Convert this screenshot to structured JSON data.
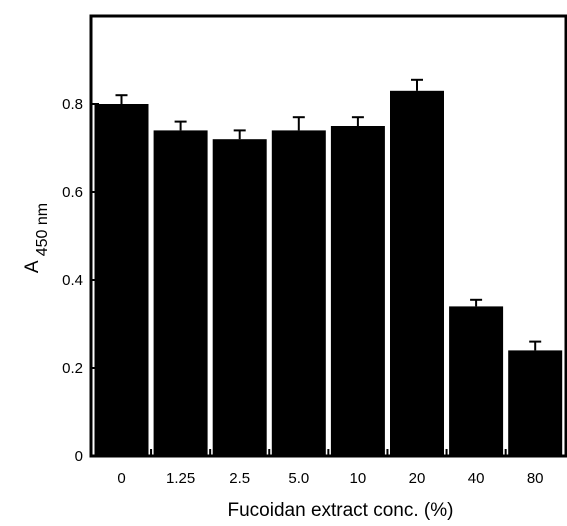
{
  "chart_data": {
    "type": "bar",
    "title": "",
    "xlabel": "Fucoidan extract conc. (%)",
    "ylabel": {
      "main": "A",
      "subscript": "450 nm"
    },
    "categories": [
      "0",
      "1.25",
      "2.5",
      "5.0",
      "10",
      "20",
      "40",
      "80"
    ],
    "series": [
      {
        "values": [
          0.8,
          0.74,
          0.72,
          0.74,
          0.75,
          0.83,
          0.34,
          0.24
        ],
        "errors": [
          0.02,
          0.02,
          0.02,
          0.03,
          0.02,
          0.025,
          0.015,
          0.02
        ],
        "color": "#000000"
      }
    ],
    "ylim": [
      0,
      1.0
    ],
    "yticks": [
      "0",
      "0.2",
      "0.4",
      "0.6",
      "0.8"
    ],
    "ytick_values": [
      0,
      0.2,
      0.4,
      0.6,
      0.8
    ],
    "grid": false,
    "legend": "none",
    "error_bars": "upper"
  }
}
